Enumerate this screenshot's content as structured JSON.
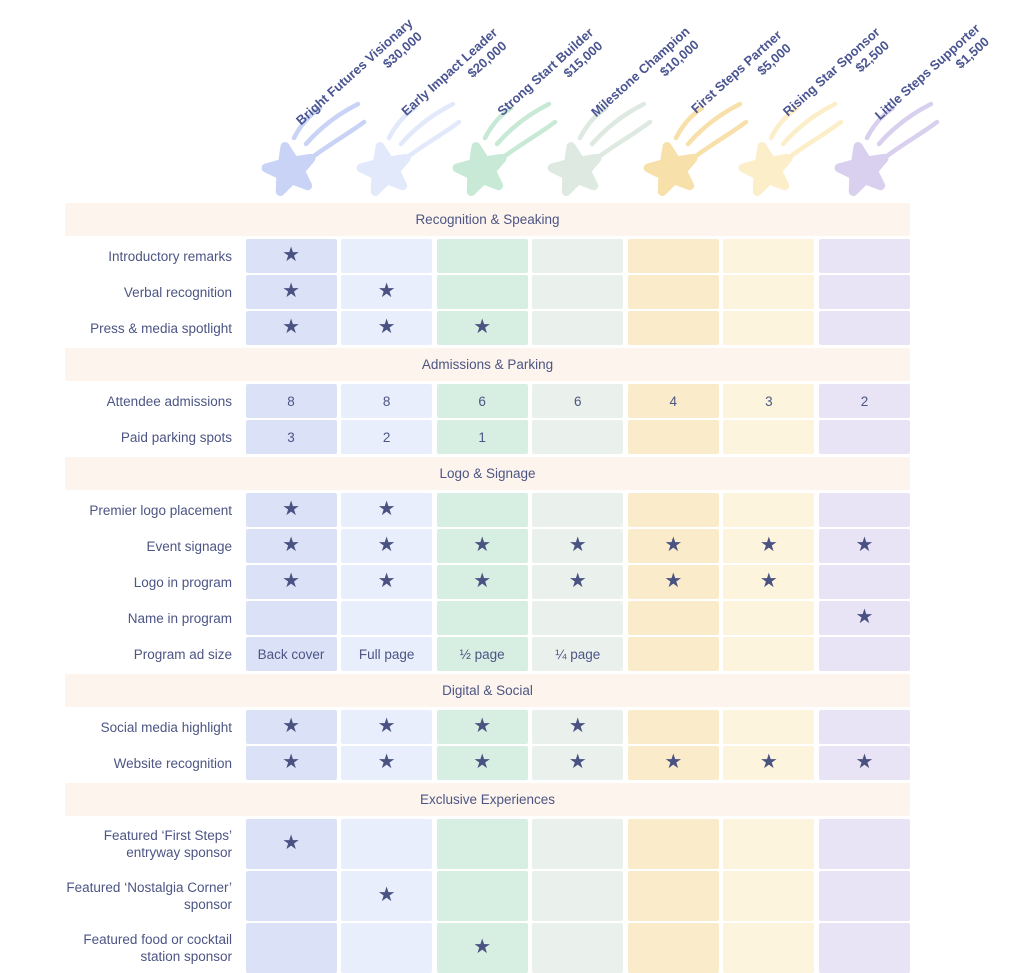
{
  "chart_data": {
    "type": "table",
    "columns": [
      {
        "tier": "Bright Futures Visionary",
        "price": "$30,000"
      },
      {
        "tier": "Early Impact Leader",
        "price": "$20,000"
      },
      {
        "tier": "Strong Start Builder",
        "price": "$15,000"
      },
      {
        "tier": "Milestone Champion",
        "price": "$10,000"
      },
      {
        "tier": "First Steps Partner",
        "price": "$5,000"
      },
      {
        "tier": "Rising Star Sponsor",
        "price": "$2,500"
      },
      {
        "tier": "Little Steps Supporter",
        "price": "$1,500"
      }
    ],
    "sections": [
      {
        "title": "Recognition & Speaking",
        "rows": [
          {
            "label": "Introductory remarks",
            "cells": [
              "★",
              "",
              "",
              "",
              "",
              "",
              ""
            ]
          },
          {
            "label": "Verbal recognition",
            "cells": [
              "★",
              "★",
              "",
              "",
              "",
              "",
              ""
            ]
          },
          {
            "label": "Press & media spotlight",
            "cells": [
              "★",
              "★",
              "★",
              "",
              "",
              "",
              ""
            ]
          }
        ]
      },
      {
        "title": "Admissions & Parking",
        "rows": [
          {
            "label": "Attendee admissions",
            "cells": [
              "8",
              "8",
              "6",
              "6",
              "4",
              "3",
              "2"
            ]
          },
          {
            "label": "Paid parking spots",
            "cells": [
              "3",
              "2",
              "1",
              "",
              "",
              "",
              ""
            ]
          }
        ]
      },
      {
        "title": "Logo & Signage",
        "rows": [
          {
            "label": "Premier logo placement",
            "cells": [
              "★",
              "★",
              "",
              "",
              "",
              "",
              ""
            ]
          },
          {
            "label": "Event signage",
            "cells": [
              "★",
              "★",
              "★",
              "★",
              "★",
              "★",
              "★"
            ]
          },
          {
            "label": "Logo in program",
            "cells": [
              "★",
              "★",
              "★",
              "★",
              "★",
              "★",
              ""
            ]
          },
          {
            "label": "Name in program",
            "cells": [
              "",
              "",
              "",
              "",
              "",
              "",
              "★"
            ]
          },
          {
            "label": "Program ad size",
            "cells": [
              "Back cover",
              "Full page",
              "½ page",
              "¼ page",
              "",
              "",
              ""
            ]
          }
        ]
      },
      {
        "title": "Digital & Social",
        "rows": [
          {
            "label": "Social media highlight",
            "cells": [
              "★",
              "★",
              "★",
              "★",
              "",
              "",
              ""
            ]
          },
          {
            "label": "Website recognition",
            "cells": [
              "★",
              "★",
              "★",
              "★",
              "★",
              "★",
              "★"
            ]
          }
        ]
      },
      {
        "title": "Exclusive Experiences",
        "rows": [
          {
            "label": "Featured ‘First Steps’ entryway sponsor",
            "cells": [
              "★",
              "",
              "",
              "",
              "",
              "",
              ""
            ]
          },
          {
            "label": "Featured ‘Nostalgia Corner’ sponsor",
            "cells": [
              "",
              "★",
              "",
              "",
              "",
              "",
              ""
            ]
          },
          {
            "label": "Featured food or cocktail station sponsor",
            "cells": [
              "",
              "",
              "★",
              "",
              "",
              "",
              ""
            ]
          }
        ]
      }
    ]
  },
  "colors": {
    "label_text": "#4c5584",
    "tier_text": "#4a5490",
    "cell_star": "#4a5282",
    "section_band_bg": "#fdf4ed",
    "tiers": [
      {
        "icon": "#c8d3f5",
        "cell": "#dbe2f8"
      },
      {
        "icon": "#e2e9fb",
        "cell": "#e8eefc"
      },
      {
        "icon": "#c7e9d6",
        "cell": "#d7efe3"
      },
      {
        "icon": "#dde9e1",
        "cell": "#eaf1ed"
      },
      {
        "icon": "#f8e0aa",
        "cell": "#faeccb"
      },
      {
        "icon": "#fbeec9",
        "cell": "#fdf4de"
      },
      {
        "icon": "#d8d0ee",
        "cell": "#e8e3f5"
      }
    ]
  }
}
